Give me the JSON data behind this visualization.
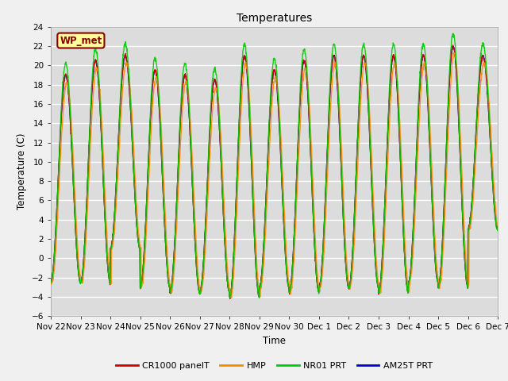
{
  "title": "Temperatures",
  "ylabel": "Temperature (C)",
  "xlabel": "Time",
  "ylim": [
    -6,
    24
  ],
  "yticks": [
    -6,
    -4,
    -2,
    0,
    2,
    4,
    6,
    8,
    10,
    12,
    14,
    16,
    18,
    20,
    22,
    24
  ],
  "annotation": "WP_met",
  "bg_color": "#dcdcdc",
  "fig_bg": "#f0f0f0",
  "legend": [
    {
      "label": "CR1000 panelT",
      "color": "#cc0000"
    },
    {
      "label": "HMP",
      "color": "#ff8800"
    },
    {
      "label": "NR01 PRT",
      "color": "#00cc00"
    },
    {
      "label": "AM25T PRT",
      "color": "#0000cc"
    }
  ],
  "n_days": 15,
  "points_per_day": 144,
  "day_peaks": [
    19.0,
    20.5,
    21.0,
    19.5,
    19.0,
    18.5,
    21.0,
    19.5,
    20.5,
    21.0,
    21.0,
    21.0,
    21.0,
    22.0,
    21.0
  ],
  "night_mins": [
    -2.5,
    -2.5,
    1.0,
    -3.0,
    -3.5,
    -3.5,
    -4.0,
    -3.0,
    -3.5,
    -3.0,
    -3.0,
    -3.5,
    -2.5,
    -3.0,
    3.0
  ],
  "figsize": [
    6.4,
    4.8
  ],
  "dpi": 100
}
